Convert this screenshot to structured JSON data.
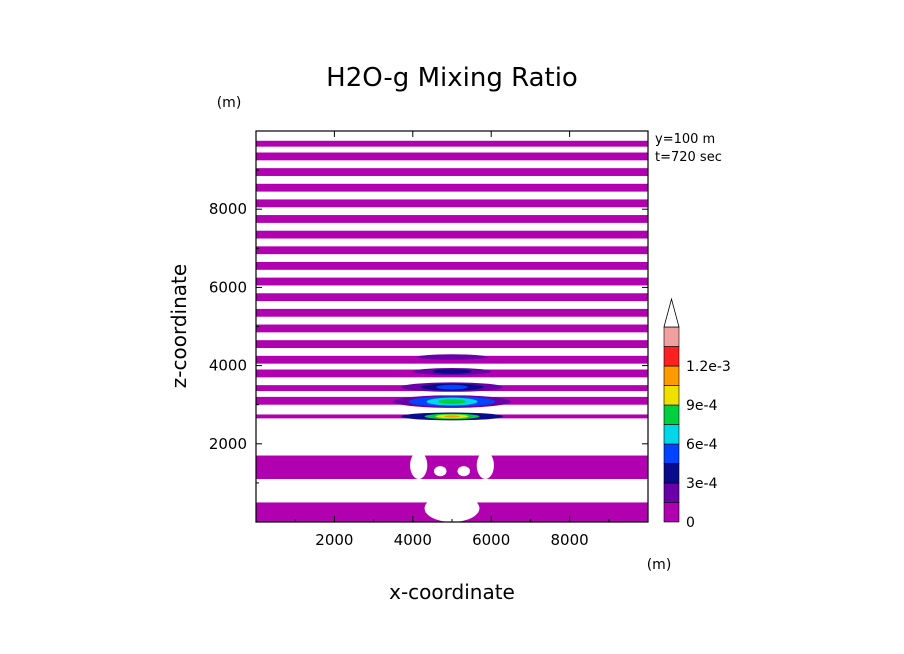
{
  "chart_data": {
    "type": "heatmap",
    "title": "H2O-g Mixing Ratio",
    "xlabel": "x-coordinate",
    "ylabel": "z-coordinate",
    "x_unit": "(m)",
    "y_unit": "(m)",
    "annotations": [
      "y=100 m",
      "t=720 sec"
    ],
    "xlim": [
      0,
      10000
    ],
    "ylim": [
      0,
      10000
    ],
    "xticks": [
      2000,
      4000,
      6000,
      8000
    ],
    "yticks": [
      2000,
      4000,
      6000,
      8000
    ],
    "colorbar": {
      "levels": [
        0,
        0.00015,
        0.0003,
        0.00045,
        0.0006,
        0.00075,
        0.0009,
        0.00105,
        0.0012,
        0.00135
      ],
      "colors": [
        "#b000b0",
        "#6a00a8",
        "#0a0a8c",
        "#0044ff",
        "#00d8e8",
        "#00d040",
        "#f0e000",
        "#ff9a00",
        "#ff2020",
        "#f0a0a0",
        "#ffffff"
      ],
      "tick_values": [
        0,
        0.0003,
        0.0006,
        0.0009,
        0.0012
      ],
      "tick_labels": [
        "0",
        "3e-4",
        "6e-4",
        "9e-4",
        "1.2e-3"
      ]
    },
    "bands": [
      {
        "z0": 2650,
        "z1": 2750,
        "level": 0
      },
      {
        "z0": 3000,
        "z1": 3200,
        "level": 0
      },
      {
        "z0": 3350,
        "z1": 3500,
        "level": 0
      },
      {
        "z0": 3700,
        "z1": 3900,
        "level": 0
      },
      {
        "z0": 4050,
        "z1": 4250,
        "level": 0
      },
      {
        "z0": 4450,
        "z1": 4650,
        "level": 0
      },
      {
        "z0": 4850,
        "z1": 5050,
        "level": 0
      },
      {
        "z0": 5250,
        "z1": 5450,
        "level": 0
      },
      {
        "z0": 5650,
        "z1": 5850,
        "level": 0
      },
      {
        "z0": 6050,
        "z1": 6250,
        "level": 0
      },
      {
        "z0": 6450,
        "z1": 6650,
        "level": 0
      },
      {
        "z0": 6850,
        "z1": 7050,
        "level": 0
      },
      {
        "z0": 7250,
        "z1": 7450,
        "level": 0
      },
      {
        "z0": 7650,
        "z1": 7850,
        "level": 0
      },
      {
        "z0": 8050,
        "z1": 8250,
        "level": 0
      },
      {
        "z0": 8450,
        "z1": 8650,
        "level": 0
      },
      {
        "z0": 8850,
        "z1": 9050,
        "level": 0
      },
      {
        "z0": 9250,
        "z1": 9450,
        "level": 0
      },
      {
        "z0": 9600,
        "z1": 9750,
        "level": 0
      },
      {
        "z0": 1100,
        "z1": 1700,
        "level": 0
      },
      {
        "z0": 0,
        "z1": 500,
        "level": 0
      }
    ],
    "plumes": [
      {
        "xc": 5000,
        "zc": 2700,
        "rx": 1300,
        "rz": 100,
        "level": 2
      },
      {
        "xc": 5000,
        "zc": 2700,
        "rx": 700,
        "rz": 70,
        "level": 5
      },
      {
        "xc": 5000,
        "zc": 2700,
        "rx": 420,
        "rz": 50,
        "level": 6
      },
      {
        "xc": 5000,
        "zc": 2700,
        "rx": 200,
        "rz": 30,
        "level": 7
      },
      {
        "xc": 5000,
        "zc": 3080,
        "rx": 1500,
        "rz": 160,
        "level": 1
      },
      {
        "xc": 5000,
        "zc": 3080,
        "rx": 1100,
        "rz": 130,
        "level": 3
      },
      {
        "xc": 5000,
        "zc": 3080,
        "rx": 650,
        "rz": 100,
        "level": 4
      },
      {
        "xc": 5000,
        "zc": 3080,
        "rx": 350,
        "rz": 60,
        "level": 5
      },
      {
        "xc": 5000,
        "zc": 3450,
        "rx": 1300,
        "rz": 120,
        "level": 1
      },
      {
        "xc": 5000,
        "zc": 3450,
        "rx": 800,
        "rz": 90,
        "level": 2
      },
      {
        "xc": 5000,
        "zc": 3450,
        "rx": 400,
        "rz": 60,
        "level": 3
      },
      {
        "xc": 5000,
        "zc": 3850,
        "rx": 1000,
        "rz": 90,
        "level": 1
      },
      {
        "xc": 5000,
        "zc": 3850,
        "rx": 500,
        "rz": 60,
        "level": 2
      },
      {
        "xc": 5000,
        "zc": 4220,
        "rx": 900,
        "rz": 70,
        "level": 1
      }
    ],
    "holes": [
      {
        "xc": 4150,
        "zc": 1450,
        "rx": 220,
        "rz": 350
      },
      {
        "xc": 5850,
        "zc": 1450,
        "rx": 220,
        "rz": 350
      },
      {
        "xc": 4700,
        "zc": 1300,
        "rx": 160,
        "rz": 130
      },
      {
        "xc": 5300,
        "zc": 1300,
        "rx": 160,
        "rz": 130
      },
      {
        "xc": 5000,
        "zc": 800,
        "rx": 550,
        "rz": 180
      },
      {
        "xc": 5000,
        "zc": 350,
        "rx": 700,
        "rz": 350
      },
      {
        "xc": 3650,
        "zc": 700,
        "rx": 220,
        "rz": 180
      },
      {
        "xc": 6350,
        "zc": 700,
        "rx": 220,
        "rz": 180
      }
    ]
  }
}
